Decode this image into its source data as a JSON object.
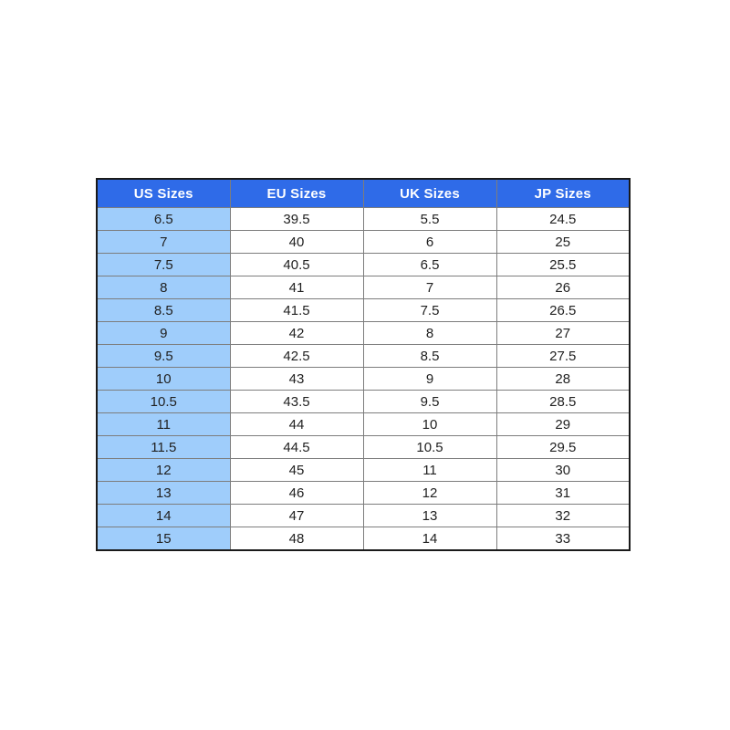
{
  "chart_data": {
    "type": "table",
    "columns": [
      "US Sizes",
      "EU Sizes",
      "UK Sizes",
      "JP Sizes"
    ],
    "rows": [
      [
        "6.5",
        "39.5",
        "5.5",
        "24.5"
      ],
      [
        "7",
        "40",
        "6",
        "25"
      ],
      [
        "7.5",
        "40.5",
        "6.5",
        "25.5"
      ],
      [
        "8",
        "41",
        "7",
        "26"
      ],
      [
        "8.5",
        "41.5",
        "7.5",
        "26.5"
      ],
      [
        "9",
        "42",
        "8",
        "27"
      ],
      [
        "9.5",
        "42.5",
        "8.5",
        "27.5"
      ],
      [
        "10",
        "43",
        "9",
        "28"
      ],
      [
        "10.5",
        "43.5",
        "9.5",
        "28.5"
      ],
      [
        "11",
        "44",
        "10",
        "29"
      ],
      [
        "11.5",
        "44.5",
        "10.5",
        "29.5"
      ],
      [
        "12",
        "45",
        "11",
        "30"
      ],
      [
        "13",
        "46",
        "12",
        "31"
      ],
      [
        "14",
        "47",
        "13",
        "32"
      ],
      [
        "15",
        "48",
        "14",
        "33"
      ]
    ]
  },
  "colors": {
    "header_bg": "#2f6be8",
    "header_text": "#ffffff",
    "first_col_bg": "#9fcdfb",
    "cell_bg": "#ffffff",
    "cell_text": "#212121",
    "inner_border": "#7d7d7d",
    "outer_border": "#1a1a1a"
  }
}
